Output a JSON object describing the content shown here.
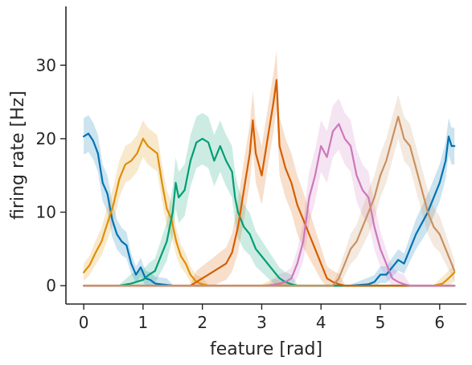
{
  "chart_data": {
    "type": "line",
    "xlabel": "feature [rad]",
    "ylabel": "firing rate [Hz]",
    "xlim": [
      -0.3,
      6.45
    ],
    "ylim": [
      -2.5,
      38
    ],
    "xticks": [
      0,
      1,
      2,
      3,
      4,
      5,
      6
    ],
    "yticks": [
      0,
      10,
      20,
      30
    ],
    "grid": false,
    "colors": {
      "blue": "#0173b2",
      "orange": "#de8f05",
      "green": "#029e73",
      "vermillion": "#d55e00",
      "pink": "#cc78bc",
      "tan": "#ca9161"
    },
    "series": [
      {
        "color": "#0173b2",
        "band": 2.5,
        "points": [
          [
            0.0,
            20.3
          ],
          [
            0.08,
            20.7
          ],
          [
            0.16,
            19.7
          ],
          [
            0.24,
            18.0
          ],
          [
            0.32,
            14.0
          ],
          [
            0.4,
            12.5
          ],
          [
            0.48,
            9.0
          ],
          [
            0.56,
            7.0
          ],
          [
            0.64,
            6.0
          ],
          [
            0.72,
            5.5
          ],
          [
            0.8,
            3.0
          ],
          [
            0.88,
            1.5
          ],
          [
            0.96,
            2.5
          ],
          [
            1.04,
            1.0
          ],
          [
            1.12,
            0.8
          ],
          [
            1.2,
            0.3
          ],
          [
            1.3,
            0.2
          ],
          [
            1.4,
            0.1
          ],
          [
            1.5,
            0.0
          ],
          [
            2.0,
            0.0
          ],
          [
            4.5,
            0.0
          ],
          [
            4.8,
            0.2
          ],
          [
            4.9,
            0.5
          ],
          [
            5.0,
            1.5
          ],
          [
            5.1,
            1.5
          ],
          [
            5.2,
            2.5
          ],
          [
            5.3,
            3.5
          ],
          [
            5.4,
            3.0
          ],
          [
            5.5,
            5.0
          ],
          [
            5.6,
            7.0
          ],
          [
            5.7,
            8.5
          ],
          [
            5.8,
            10.0
          ],
          [
            5.9,
            12.0
          ],
          [
            6.0,
            14.0
          ],
          [
            6.1,
            17.0
          ],
          [
            6.15,
            20.3
          ],
          [
            6.2,
            19.0
          ],
          [
            6.25,
            19.0
          ]
        ]
      },
      {
        "color": "#de8f05",
        "band": 2.5,
        "points": [
          [
            0.0,
            1.8
          ],
          [
            0.1,
            2.8
          ],
          [
            0.2,
            4.5
          ],
          [
            0.3,
            6.0
          ],
          [
            0.4,
            8.5
          ],
          [
            0.5,
            11.0
          ],
          [
            0.6,
            14.5
          ],
          [
            0.7,
            16.5
          ],
          [
            0.8,
            17.0
          ],
          [
            0.9,
            18.0
          ],
          [
            1.0,
            20.0
          ],
          [
            1.08,
            19.0
          ],
          [
            1.16,
            18.5
          ],
          [
            1.24,
            18.0
          ],
          [
            1.32,
            14.0
          ],
          [
            1.4,
            10.5
          ],
          [
            1.48,
            9.0
          ],
          [
            1.56,
            6.0
          ],
          [
            1.64,
            4.0
          ],
          [
            1.72,
            3.0
          ],
          [
            1.8,
            1.5
          ],
          [
            1.9,
            0.5
          ],
          [
            2.0,
            0.2
          ],
          [
            2.1,
            0.0
          ],
          [
            3.0,
            0.0
          ],
          [
            3.2,
            0.1
          ],
          [
            3.5,
            0.0
          ],
          [
            5.9,
            0.0
          ],
          [
            6.05,
            0.3
          ],
          [
            6.15,
            1.0
          ],
          [
            6.25,
            1.8
          ]
        ]
      },
      {
        "color": "#029e73",
        "band": 3.5,
        "points": [
          [
            0.0,
            0.0
          ],
          [
            0.6,
            0.0
          ],
          [
            0.8,
            0.3
          ],
          [
            1.0,
            0.8
          ],
          [
            1.1,
            1.5
          ],
          [
            1.2,
            2.0
          ],
          [
            1.3,
            4.0
          ],
          [
            1.4,
            6.0
          ],
          [
            1.5,
            10.0
          ],
          [
            1.55,
            14.0
          ],
          [
            1.6,
            12.0
          ],
          [
            1.7,
            13.0
          ],
          [
            1.8,
            17.0
          ],
          [
            1.9,
            19.5
          ],
          [
            2.0,
            20.0
          ],
          [
            2.1,
            19.5
          ],
          [
            2.2,
            17.0
          ],
          [
            2.3,
            19.0
          ],
          [
            2.4,
            17.0
          ],
          [
            2.5,
            15.5
          ],
          [
            2.55,
            12.0
          ],
          [
            2.6,
            10.0
          ],
          [
            2.7,
            8.0
          ],
          [
            2.8,
            7.0
          ],
          [
            2.9,
            5.0
          ],
          [
            3.0,
            4.0
          ],
          [
            3.1,
            3.0
          ],
          [
            3.2,
            2.0
          ],
          [
            3.3,
            1.0
          ],
          [
            3.4,
            0.5
          ],
          [
            3.5,
            0.2
          ],
          [
            3.6,
            0.0
          ],
          [
            6.25,
            0.0
          ]
        ]
      },
      {
        "color": "#d55e00",
        "band": 4.0,
        "points": [
          [
            0.0,
            0.0
          ],
          [
            1.8,
            0.0
          ],
          [
            1.9,
            0.5
          ],
          [
            2.0,
            1.0
          ],
          [
            2.1,
            1.5
          ],
          [
            2.2,
            2.0
          ],
          [
            2.3,
            2.5
          ],
          [
            2.4,
            3.0
          ],
          [
            2.5,
            4.5
          ],
          [
            2.6,
            8.0
          ],
          [
            2.7,
            13.0
          ],
          [
            2.8,
            18.0
          ],
          [
            2.85,
            22.5
          ],
          [
            2.9,
            18.0
          ],
          [
            3.0,
            15.0
          ],
          [
            3.1,
            20.0
          ],
          [
            3.2,
            25.0
          ],
          [
            3.25,
            28.0
          ],
          [
            3.3,
            19.0
          ],
          [
            3.4,
            16.0
          ],
          [
            3.5,
            14.0
          ],
          [
            3.6,
            11.0
          ],
          [
            3.7,
            9.0
          ],
          [
            3.8,
            7.0
          ],
          [
            3.9,
            5.0
          ],
          [
            4.0,
            3.0
          ],
          [
            4.1,
            1.0
          ],
          [
            4.2,
            0.5
          ],
          [
            4.3,
            0.2
          ],
          [
            4.4,
            0.0
          ],
          [
            6.25,
            0.0
          ]
        ]
      },
      {
        "color": "#cc78bc",
        "band": 3.5,
        "points": [
          [
            0.0,
            0.0
          ],
          [
            3.1,
            0.0
          ],
          [
            3.3,
            0.3
          ],
          [
            3.4,
            0.5
          ],
          [
            3.5,
            1.0
          ],
          [
            3.6,
            3.0
          ],
          [
            3.7,
            6.0
          ],
          [
            3.75,
            9.0
          ],
          [
            3.8,
            12.0
          ],
          [
            3.9,
            15.0
          ],
          [
            4.0,
            19.0
          ],
          [
            4.1,
            17.5
          ],
          [
            4.2,
            21.0
          ],
          [
            4.3,
            22.0
          ],
          [
            4.4,
            20.0
          ],
          [
            4.5,
            19.0
          ],
          [
            4.6,
            15.0
          ],
          [
            4.7,
            13.0
          ],
          [
            4.8,
            12.0
          ],
          [
            4.9,
            8.0
          ],
          [
            5.0,
            5.0
          ],
          [
            5.1,
            3.0
          ],
          [
            5.2,
            1.0
          ],
          [
            5.3,
            0.5
          ],
          [
            5.4,
            0.2
          ],
          [
            5.5,
            0.0
          ],
          [
            6.25,
            0.0
          ]
        ]
      },
      {
        "color": "#ca9161",
        "band": 3.0,
        "points": [
          [
            0.0,
            0.0
          ],
          [
            4.2,
            0.0
          ],
          [
            4.3,
            1.0
          ],
          [
            4.4,
            3.0
          ],
          [
            4.5,
            5.0
          ],
          [
            4.6,
            6.0
          ],
          [
            4.7,
            8.0
          ],
          [
            4.8,
            10.0
          ],
          [
            4.9,
            12.0
          ],
          [
            5.0,
            15.0
          ],
          [
            5.1,
            17.0
          ],
          [
            5.2,
            20.0
          ],
          [
            5.3,
            23.0
          ],
          [
            5.4,
            20.0
          ],
          [
            5.5,
            19.0
          ],
          [
            5.6,
            16.0
          ],
          [
            5.7,
            13.0
          ],
          [
            5.8,
            10.0
          ],
          [
            5.9,
            8.0
          ],
          [
            6.0,
            7.0
          ],
          [
            6.1,
            5.0
          ],
          [
            6.2,
            3.0
          ],
          [
            6.25,
            2.0
          ]
        ]
      }
    ]
  }
}
